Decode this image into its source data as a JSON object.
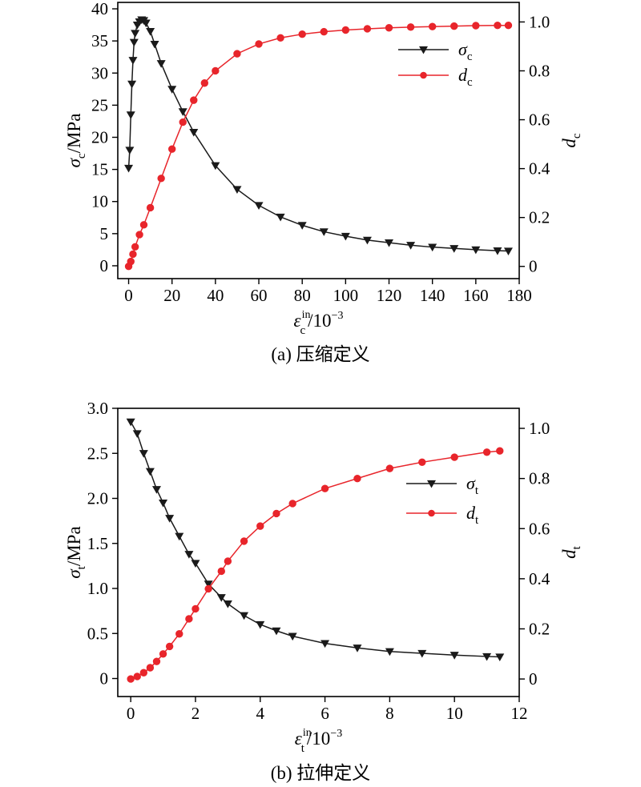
{
  "chart_data": [
    {
      "type": "line",
      "caption": "(a) 压缩定义",
      "xlabel": {
        "symbol": "ε",
        "sub": "c",
        "sup": "in",
        "unit": "/10",
        "unit_exp": "−3"
      },
      "ylabel_left": {
        "symbol": "σ",
        "sub": "c",
        "unit": "/MPa"
      },
      "ylabel_right": {
        "symbol": "d",
        "sub": "c"
      },
      "xlim": [
        -5,
        180
      ],
      "ylim_left": [
        -2,
        41
      ],
      "ylim_right": [
        -0.05,
        1.08
      ],
      "xticks": [
        0,
        20,
        40,
        60,
        80,
        100,
        120,
        140,
        160,
        180
      ],
      "yticks_left": [
        0,
        5,
        10,
        15,
        20,
        25,
        30,
        35,
        40
      ],
      "yticks_right": [
        0,
        0.2,
        0.4,
        0.6,
        0.8,
        1.0
      ],
      "xtick_labels": [
        "0",
        "20",
        "40",
        "60",
        "80",
        "100",
        "120",
        "140",
        "160",
        "180"
      ],
      "ytick_labels_left": [
        "0",
        "5",
        "10",
        "15",
        "20",
        "25",
        "30",
        "35",
        "40"
      ],
      "ytick_labels_right": [
        "0",
        "0.2",
        "0.4",
        "0.6",
        "0.8",
        "1.0"
      ],
      "legend_position": "top-right",
      "series": [
        {
          "name": "σ",
          "name_sub": "c",
          "axis": "left",
          "marker": "triangle-down",
          "color": "#1a1a1a",
          "x": [
            0,
            0.5,
            1,
            1.5,
            2,
            2.5,
            3,
            4,
            5,
            6,
            7,
            8,
            10,
            12,
            15,
            20,
            25,
            30,
            40,
            50,
            60,
            70,
            80,
            90,
            100,
            110,
            120,
            130,
            140,
            150,
            160,
            170,
            175
          ],
          "values": [
            15.2,
            18.0,
            23.5,
            28.3,
            32.0,
            34.8,
            36.2,
            37.5,
            38.0,
            38.3,
            38.2,
            37.8,
            36.5,
            34.5,
            31.5,
            27.5,
            24.0,
            20.8,
            15.6,
            11.9,
            9.4,
            7.6,
            6.3,
            5.3,
            4.6,
            4.0,
            3.6,
            3.2,
            2.9,
            2.7,
            2.5,
            2.35,
            2.3
          ]
        },
        {
          "name": "d",
          "name_sub": "c",
          "axis": "right",
          "marker": "circle",
          "color": "#e8252b",
          "x": [
            0,
            1,
            2,
            3,
            5,
            7,
            10,
            15,
            20,
            25,
            30,
            35,
            40,
            50,
            60,
            70,
            80,
            90,
            100,
            110,
            120,
            130,
            140,
            150,
            160,
            170,
            175
          ],
          "values": [
            0.0,
            0.02,
            0.05,
            0.08,
            0.13,
            0.17,
            0.24,
            0.36,
            0.48,
            0.59,
            0.68,
            0.75,
            0.8,
            0.87,
            0.91,
            0.935,
            0.95,
            0.96,
            0.967,
            0.972,
            0.976,
            0.979,
            0.981,
            0.983,
            0.985,
            0.986,
            0.986
          ]
        }
      ]
    },
    {
      "type": "line",
      "caption": "(b) 拉伸定义",
      "xlabel": {
        "symbol": "ε",
        "sub": "t",
        "sup": "in",
        "unit": "/10",
        "unit_exp": "−3"
      },
      "ylabel_left": {
        "symbol": "σ",
        "sub": "t",
        "unit": "/MPa"
      },
      "ylabel_right": {
        "symbol": "d",
        "sub": "t"
      },
      "xlim": [
        -0.4,
        12
      ],
      "ylim_left": [
        -0.2,
        3.0
      ],
      "ylim_right": [
        -0.07,
        1.08
      ],
      "xticks": [
        0,
        2,
        4,
        6,
        8,
        10,
        12
      ],
      "yticks_left": [
        0,
        0.5,
        1.0,
        1.5,
        2.0,
        2.5,
        3.0
      ],
      "yticks_right": [
        0,
        0.2,
        0.4,
        0.6,
        0.8,
        1.0
      ],
      "xtick_labels": [
        "0",
        "2",
        "4",
        "6",
        "8",
        "10",
        "12"
      ],
      "ytick_labels_left": [
        "0",
        "0.5",
        "1.0",
        "1.5",
        "2.0",
        "2.5",
        "3.0"
      ],
      "ytick_labels_right": [
        "0",
        "0.2",
        "0.4",
        "0.6",
        "0.8",
        "1.0"
      ],
      "legend_position": "top-right",
      "series": [
        {
          "name": "σ",
          "name_sub": "t",
          "axis": "left",
          "marker": "triangle-down",
          "color": "#1a1a1a",
          "x": [
            0,
            0.2,
            0.4,
            0.6,
            0.8,
            1.0,
            1.2,
            1.5,
            1.8,
            2.0,
            2.4,
            2.8,
            3.0,
            3.5,
            4.0,
            4.5,
            5.0,
            6.0,
            7.0,
            8.0,
            9.0,
            10.0,
            11.0,
            11.4
          ],
          "values": [
            2.85,
            2.72,
            2.5,
            2.3,
            2.1,
            1.95,
            1.78,
            1.58,
            1.38,
            1.28,
            1.05,
            0.9,
            0.83,
            0.7,
            0.6,
            0.53,
            0.47,
            0.39,
            0.34,
            0.3,
            0.28,
            0.26,
            0.245,
            0.24
          ]
        },
        {
          "name": "d",
          "name_sub": "t",
          "axis": "right",
          "marker": "circle",
          "color": "#e8252b",
          "x": [
            0,
            0.2,
            0.4,
            0.6,
            0.8,
            1.0,
            1.2,
            1.5,
            1.8,
            2.0,
            2.4,
            2.8,
            3.0,
            3.5,
            4.0,
            4.5,
            5.0,
            6.0,
            7.0,
            8.0,
            9.0,
            10.0,
            11.0,
            11.4
          ],
          "values": [
            0.0,
            0.01,
            0.025,
            0.045,
            0.07,
            0.1,
            0.13,
            0.18,
            0.24,
            0.28,
            0.36,
            0.43,
            0.47,
            0.55,
            0.61,
            0.66,
            0.7,
            0.76,
            0.8,
            0.84,
            0.865,
            0.885,
            0.905,
            0.91
          ]
        }
      ]
    }
  ]
}
